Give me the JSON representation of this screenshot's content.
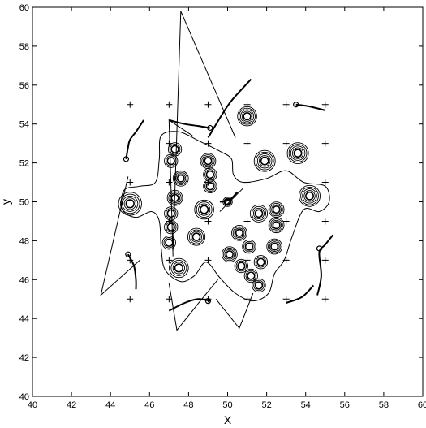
{
  "chart_data": {
    "type": "contour",
    "xlabel": "X",
    "ylabel": "y",
    "xlim": [
      40,
      60
    ],
    "ylim": [
      40,
      60
    ],
    "xticks": [
      40,
      42,
      44,
      46,
      48,
      50,
      52,
      54,
      56,
      58,
      60
    ],
    "yticks": [
      40,
      42,
      44,
      46,
      48,
      50,
      52,
      54,
      56,
      58,
      60
    ],
    "grid": false,
    "legend": "none",
    "peaks": [
      {
        "x": 45.0,
        "y": 49.9,
        "r": 0.55,
        "rings": 5
      },
      {
        "x": 47.3,
        "y": 52.7,
        "r": 0.3,
        "rings": 3
      },
      {
        "x": 47.1,
        "y": 52.1,
        "r": 0.3,
        "rings": 3
      },
      {
        "x": 47.6,
        "y": 51.2,
        "r": 0.35,
        "rings": 4
      },
      {
        "x": 47.3,
        "y": 50.2,
        "r": 0.35,
        "rings": 4
      },
      {
        "x": 47.1,
        "y": 49.4,
        "r": 0.3,
        "rings": 3
      },
      {
        "x": 47.1,
        "y": 48.7,
        "r": 0.3,
        "rings": 3
      },
      {
        "x": 47.0,
        "y": 47.9,
        "r": 0.3,
        "rings": 3
      },
      {
        "x": 47.5,
        "y": 46.6,
        "r": 0.45,
        "rings": 4
      },
      {
        "x": 49.0,
        "y": 52.1,
        "r": 0.35,
        "rings": 4
      },
      {
        "x": 49.1,
        "y": 51.4,
        "r": 0.3,
        "rings": 3
      },
      {
        "x": 49.1,
        "y": 50.8,
        "r": 0.3,
        "rings": 3
      },
      {
        "x": 48.8,
        "y": 49.6,
        "r": 0.45,
        "rings": 4
      },
      {
        "x": 48.4,
        "y": 48.2,
        "r": 0.4,
        "rings": 4
      },
      {
        "x": 51.0,
        "y": 54.4,
        "r": 0.45,
        "rings": 5
      },
      {
        "x": 51.9,
        "y": 52.1,
        "r": 0.5,
        "rings": 5
      },
      {
        "x": 53.6,
        "y": 52.5,
        "r": 0.5,
        "rings": 5
      },
      {
        "x": 54.2,
        "y": 50.3,
        "r": 0.5,
        "rings": 5
      },
      {
        "x": 51.6,
        "y": 49.4,
        "r": 0.4,
        "rings": 4
      },
      {
        "x": 52.5,
        "y": 49.6,
        "r": 0.35,
        "rings": 4
      },
      {
        "x": 52.5,
        "y": 48.8,
        "r": 0.35,
        "rings": 4
      },
      {
        "x": 50.6,
        "y": 48.4,
        "r": 0.35,
        "rings": 4
      },
      {
        "x": 51.1,
        "y": 47.7,
        "r": 0.3,
        "rings": 3
      },
      {
        "x": 50.1,
        "y": 47.3,
        "r": 0.35,
        "rings": 4
      },
      {
        "x": 50.7,
        "y": 46.7,
        "r": 0.3,
        "rings": 3
      },
      {
        "x": 51.7,
        "y": 46.9,
        "r": 0.3,
        "rings": 3
      },
      {
        "x": 51.2,
        "y": 46.2,
        "r": 0.3,
        "rings": 3
      },
      {
        "x": 51.6,
        "y": 45.7,
        "r": 0.3,
        "rings": 3
      },
      {
        "x": 52.4,
        "y": 47.7,
        "r": 0.35,
        "rings": 4
      },
      {
        "x": 50.0,
        "y": 50.0,
        "r": 0.2,
        "rings": 2
      }
    ],
    "blob_outline": [
      [
        46.6,
        53.4
      ],
      [
        47.5,
        53.6
      ],
      [
        48.6,
        53.1
      ],
      [
        49.6,
        52.6
      ],
      [
        50.2,
        52.2
      ],
      [
        50.3,
        51.4
      ],
      [
        50.8,
        51.0
      ],
      [
        52.0,
        51.2
      ],
      [
        53.0,
        51.6
      ],
      [
        53.9,
        51.0
      ],
      [
        55.0,
        50.8
      ],
      [
        55.2,
        50.0
      ],
      [
        54.7,
        49.5
      ],
      [
        53.9,
        49.6
      ],
      [
        53.3,
        48.2
      ],
      [
        52.9,
        47.0
      ],
      [
        52.4,
        46.3
      ],
      [
        52.1,
        45.3
      ],
      [
        51.3,
        44.9
      ],
      [
        50.4,
        45.3
      ],
      [
        49.6,
        46.1
      ],
      [
        48.9,
        46.9
      ],
      [
        48.3,
        46.2
      ],
      [
        47.6,
        45.9
      ],
      [
        46.8,
        46.5
      ],
      [
        46.6,
        47.6
      ],
      [
        46.5,
        49.0
      ],
      [
        46.1,
        49.5
      ],
      [
        45.3,
        49.2
      ],
      [
        44.6,
        49.6
      ],
      [
        44.7,
        50.6
      ],
      [
        45.5,
        50.8
      ],
      [
        46.3,
        51.0
      ],
      [
        46.5,
        52.2
      ]
    ],
    "triangle_lines": [
      [
        [
          44.9,
          51.3
        ],
        [
          43.5,
          45.2
        ],
        [
          45.5,
          47.0
        ]
      ],
      [
        [
          47.2,
          47.5
        ],
        [
          47.6,
          59.8
        ],
        [
          50.4,
          53.3
        ]
      ],
      [
        [
          47.2,
          47.2
        ],
        [
          47.0,
          54.2
        ],
        [
          48.2,
          53.4
        ]
      ],
      [
        [
          49.6,
          49.5
        ],
        [
          50.8,
          50.7
        ]
      ],
      [
        [
          47.0,
          45.8
        ],
        [
          47.4,
          43.4
        ],
        [
          48.6,
          44.9
        ],
        [
          49.5,
          46.0
        ]
      ],
      [
        [
          49.4,
          45.0
        ],
        [
          50.6,
          43.5
        ],
        [
          51.3,
          45.3
        ]
      ]
    ],
    "trajectories": [
      {
        "points": [
          [
            45.7,
            54.2
          ],
          [
            45.3,
            53.6
          ],
          [
            45.0,
            53.2
          ],
          [
            44.9,
            52.8
          ],
          [
            44.8,
            52.2
          ]
        ],
        "marker": [
          44.8,
          52.2
        ]
      },
      {
        "points": [
          [
            44.9,
            47.3
          ],
          [
            45.2,
            46.7
          ],
          [
            45.3,
            46.0
          ],
          [
            45.3,
            45.5
          ]
        ],
        "marker": [
          44.9,
          47.3
        ]
      },
      {
        "points": [
          [
            47.0,
            54.2
          ],
          [
            47.8,
            54.0
          ],
          [
            48.5,
            53.9
          ],
          [
            49.1,
            53.8
          ]
        ],
        "marker": [
          49.1,
          53.8
        ]
      },
      {
        "points": [
          [
            49.0,
            53.3
          ],
          [
            49.6,
            54.3
          ],
          [
            50.2,
            55.2
          ],
          [
            51.2,
            56.3
          ]
        ],
        "marker": null
      },
      {
        "points": [
          [
            53.5,
            55.0
          ],
          [
            54.2,
            54.9
          ],
          [
            55.0,
            54.7
          ]
        ],
        "marker": [
          53.5,
          55.0
        ]
      },
      {
        "points": [
          [
            55.4,
            48.3
          ],
          [
            55.0,
            47.8
          ],
          [
            54.7,
            47.4
          ],
          [
            54.8,
            46.2
          ],
          [
            54.6,
            45.2
          ]
        ],
        "marker": [
          54.7,
          47.6
        ]
      },
      {
        "points": [
          [
            47.0,
            44.4
          ],
          [
            47.8,
            44.8
          ],
          [
            48.5,
            45.0
          ],
          [
            49.1,
            44.9
          ]
        ],
        "marker": [
          49.0,
          44.9
        ]
      },
      {
        "points": [
          [
            53.0,
            44.8
          ],
          [
            53.8,
            45.1
          ],
          [
            54.4,
            45.7
          ]
        ],
        "marker": null
      },
      {
        "points": [
          [
            49.6,
            50.0
          ],
          [
            50.1,
            50.1
          ],
          [
            50.5,
            50.5
          ]
        ],
        "marker": [
          50.0,
          50.0
        ]
      }
    ],
    "plus_markers": [
      [
        45.0,
        55.0
      ],
      [
        47.0,
        55.0
      ],
      [
        49.0,
        55.0
      ],
      [
        51.0,
        55.0
      ],
      [
        53.0,
        55.0
      ],
      [
        55.0,
        55.0
      ],
      [
        45.0,
        51.0
      ],
      [
        47.0,
        53.0
      ],
      [
        49.0,
        53.0
      ],
      [
        51.0,
        53.0
      ],
      [
        53.0,
        53.0
      ],
      [
        55.0,
        53.0
      ],
      [
        47.0,
        51.0
      ],
      [
        49.0,
        51.0
      ],
      [
        51.0,
        51.0
      ],
      [
        55.0,
        51.0
      ],
      [
        47.0,
        49.0
      ],
      [
        49.0,
        49.0
      ],
      [
        51.0,
        49.0
      ],
      [
        53.0,
        49.0
      ],
      [
        55.0,
        49.0
      ],
      [
        45.0,
        47.0
      ],
      [
        47.0,
        47.0
      ],
      [
        49.0,
        47.0
      ],
      [
        51.0,
        47.0
      ],
      [
        53.0,
        47.0
      ],
      [
        55.0,
        47.0
      ],
      [
        45.0,
        45.0
      ],
      [
        47.0,
        45.0
      ],
      [
        49.0,
        45.0
      ],
      [
        51.0,
        45.0
      ],
      [
        53.0,
        45.0
      ],
      [
        55.0,
        45.0
      ]
    ]
  }
}
